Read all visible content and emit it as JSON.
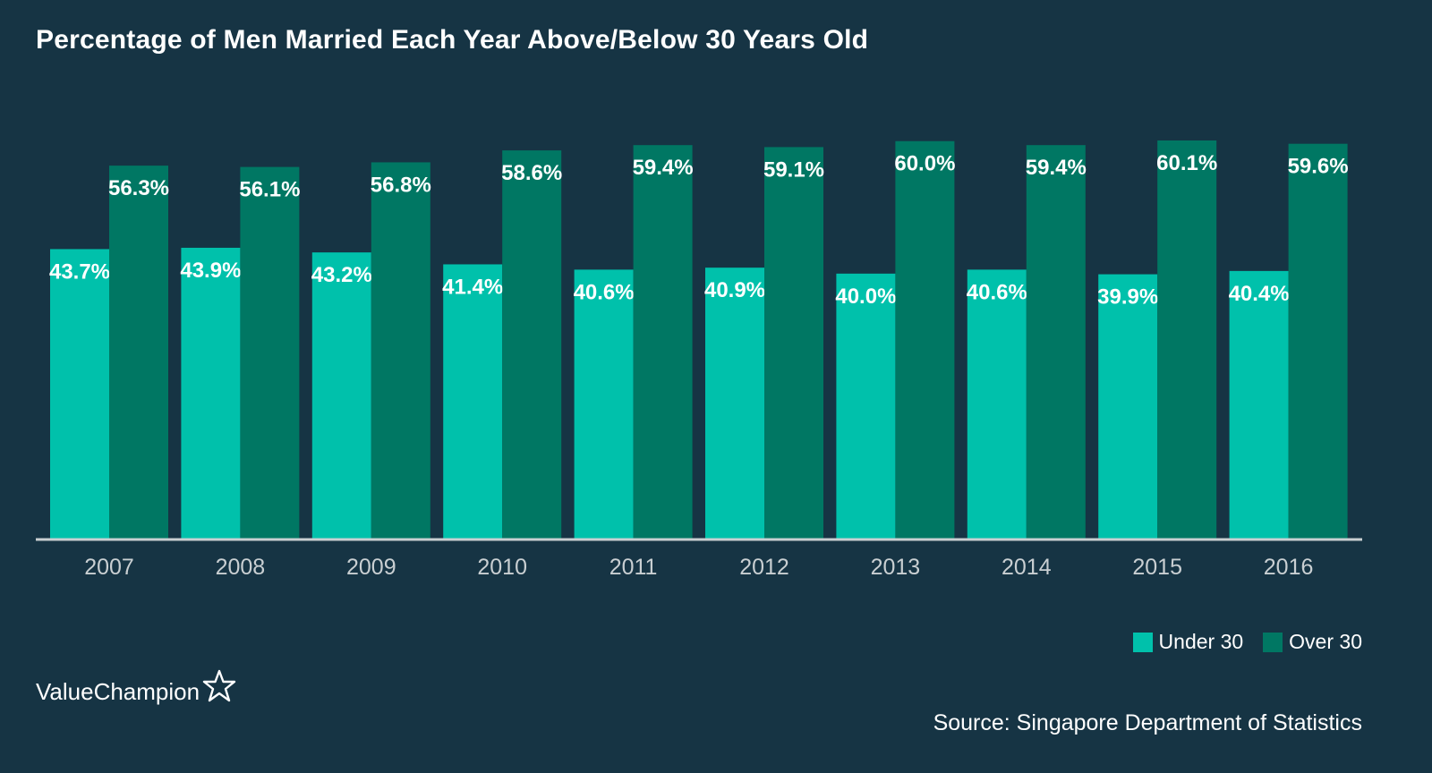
{
  "colors": {
    "background": "#163444",
    "under30": "#00c1ab",
    "over30": "#007763",
    "axis": "#c9cfd2",
    "text": "#ffffff",
    "tick_text": "#c9cfd2"
  },
  "brand": {
    "name": "ValueChampion",
    "icon": "star-outline-icon"
  },
  "source": "Source: Singapore Department of Statistics",
  "chart_data": {
    "type": "bar",
    "title": "Percentage of Men Married Each Year Above/Below 30 Years Old",
    "xlabel": "",
    "ylabel": "",
    "ylim": [
      0,
      60.1
    ],
    "grid": false,
    "legend_position": "bottom-right",
    "categories": [
      "2007",
      "2008",
      "2009",
      "2010",
      "2011",
      "2012",
      "2013",
      "2014",
      "2015",
      "2016"
    ],
    "series": [
      {
        "name": "Under 30",
        "values": [
          43.7,
          43.9,
          43.2,
          41.4,
          40.6,
          40.9,
          40.0,
          40.6,
          39.9,
          40.4
        ],
        "labels": [
          "43.7%",
          "43.9%",
          "43.2%",
          "41.4%",
          "40.6%",
          "40.9%",
          "40.0%",
          "40.6%",
          "39.9%",
          "40.4%"
        ]
      },
      {
        "name": "Over 30",
        "values": [
          56.3,
          56.1,
          56.8,
          58.6,
          59.4,
          59.1,
          60.0,
          59.4,
          60.1,
          59.6
        ],
        "labels": [
          "56.3%",
          "56.1%",
          "56.8%",
          "58.6%",
          "59.4%",
          "59.1%",
          "60.0%",
          "59.4%",
          "60.1%",
          "59.6%"
        ]
      }
    ]
  }
}
